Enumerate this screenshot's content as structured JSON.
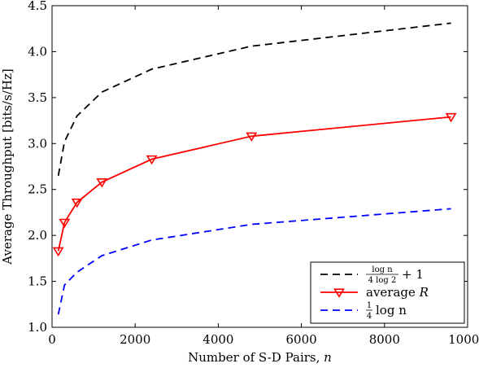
{
  "chart_data": {
    "type": "line",
    "title": "",
    "xlabel": "Number of S-D Pairs, n",
    "xlabel_parts": {
      "text": "Number of S-D Pairs, ",
      "var": "n"
    },
    "ylabel": "Average Throughput [bits/s/Hz]",
    "xlim": [
      0,
      10000
    ],
    "ylim": [
      1.0,
      4.5
    ],
    "x_ticks": [
      0,
      2000,
      4000,
      6000,
      8000,
      10000
    ],
    "x_tick_labels": [
      "0",
      "2000",
      "4000",
      "6000",
      "8000",
      "10000"
    ],
    "y_ticks": [
      1.0,
      1.5,
      2.0,
      2.5,
      3.0,
      3.5,
      4.0,
      4.5
    ],
    "y_tick_labels": [
      "1.0",
      "1.5",
      "2.0",
      "2.5",
      "3.0",
      "3.5",
      "4.0",
      "4.5"
    ],
    "grid": false,
    "legend_position": "bottom-right",
    "series": [
      {
        "name": "log n / (4 log 2) + 1",
        "legend": {
          "num": "log n",
          "den": "4 log 2",
          "suffix": "+ 1"
        },
        "color": "#000000",
        "line_style": "dashed",
        "marker": "none",
        "x": [
          150,
          300,
          600,
          1200,
          2400,
          4800,
          9600
        ],
        "y": [
          2.65,
          3.02,
          3.3,
          3.56,
          3.81,
          4.06,
          4.31
        ]
      },
      {
        "name": "average R",
        "legend": {
          "text": "average ",
          "var": "R"
        },
        "color": "#ff0000",
        "line_style": "solid",
        "marker": "triangle-down",
        "x": [
          150,
          300,
          600,
          1200,
          2400,
          4800,
          9600
        ],
        "y": [
          1.83,
          2.14,
          2.36,
          2.58,
          2.83,
          3.08,
          3.29
        ]
      },
      {
        "name": "1/4 log n",
        "legend": {
          "num": "1",
          "den": "4",
          "suffix": "log n"
        },
        "color": "#0000ff",
        "line_style": "dashed",
        "marker": "none",
        "x": [
          150,
          300,
          600,
          1200,
          2400,
          4800,
          9600
        ],
        "y": [
          1.14,
          1.46,
          1.6,
          1.78,
          1.95,
          2.12,
          2.29
        ]
      }
    ]
  }
}
